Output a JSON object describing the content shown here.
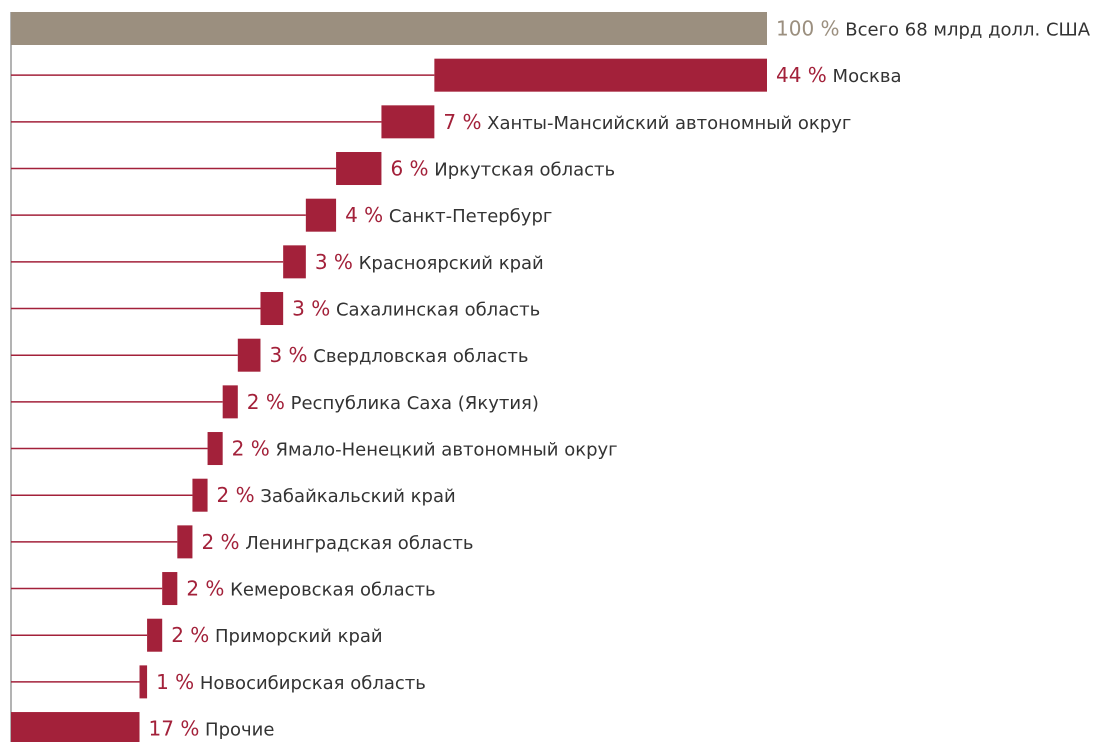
{
  "colors": {
    "total": "#9b8f7f",
    "bar": "#a3213a",
    "text": "#333333",
    "axis": "#9a9a9a",
    "background": "#ffffff"
  },
  "chart_data": {
    "type": "bar",
    "orientation": "horizontal-waterfall",
    "unit": "%",
    "total": {
      "value": 100,
      "value_label": "100 %",
      "label": "Всего 68 млрд долл. США"
    },
    "categories": [
      "Москва",
      "Ханты-Мансийский автономный округ",
      "Иркутская область",
      "Санкт-Петербург",
      "Красноярский край",
      "Сахалинская область",
      "Свердловская область",
      "Республика Саха (Якутия)",
      "Ямало-Ненецкий автономный округ",
      "Забайкальский край",
      "Ленинградская область",
      "Кемеровская область",
      "Приморский край",
      "Новосибирская область",
      "Прочие"
    ],
    "values": [
      44,
      7,
      6,
      4,
      3,
      3,
      3,
      2,
      2,
      2,
      2,
      2,
      2,
      1,
      17
    ],
    "value_labels": [
      "44 %",
      "7 %",
      "6 %",
      "4 %",
      "3 %",
      "3 %",
      "3 %",
      "2 %",
      "2 %",
      "2 %",
      "2 %",
      "2 %",
      "2 %",
      "1 %",
      "17 %"
    ],
    "xlim": [
      0,
      100
    ],
    "grid": false,
    "legend": "none"
  }
}
